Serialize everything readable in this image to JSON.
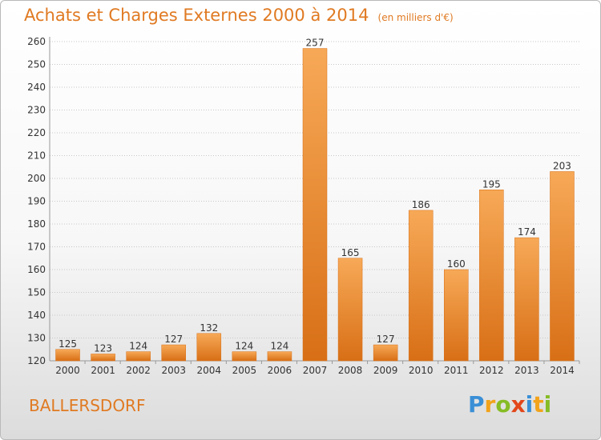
{
  "chart_data": {
    "type": "bar",
    "title": "Achats et Charges Externes 2000 à 2014",
    "subtitle": "(en milliers d'€)",
    "categories": [
      "2000",
      "2001",
      "2002",
      "2003",
      "2004",
      "2005",
      "2006",
      "2007",
      "2008",
      "2009",
      "2010",
      "2011",
      "2012",
      "2013",
      "2014"
    ],
    "values": [
      125,
      123,
      124,
      127,
      132,
      124,
      124,
      257,
      165,
      127,
      186,
      160,
      195,
      174,
      203
    ],
    "ylim": [
      120,
      260
    ],
    "yticks": [
      120,
      130,
      140,
      150,
      160,
      170,
      180,
      190,
      200,
      210,
      220,
      230,
      240,
      250,
      260
    ],
    "grid": "horizontal-dotted",
    "bar_color": "#f08a2c",
    "bar_color_light": "#f7a957",
    "bar_color_dark": "#d86f16",
    "label_color": "#333333"
  },
  "commune": "BALLERSDORF",
  "logo": {
    "text": "Proxiti",
    "letters": [
      {
        "ch": "P",
        "color": "#3a8fd6"
      },
      {
        "ch": "r",
        "color": "#f2a31b"
      },
      {
        "ch": "o",
        "color": "#86bc25"
      },
      {
        "ch": "x",
        "color": "#e2461a"
      },
      {
        "ch": "i",
        "color": "#3a8fd6"
      },
      {
        "ch": "t",
        "color": "#f2a31b"
      },
      {
        "ch": "i",
        "color": "#86bc25"
      }
    ]
  }
}
